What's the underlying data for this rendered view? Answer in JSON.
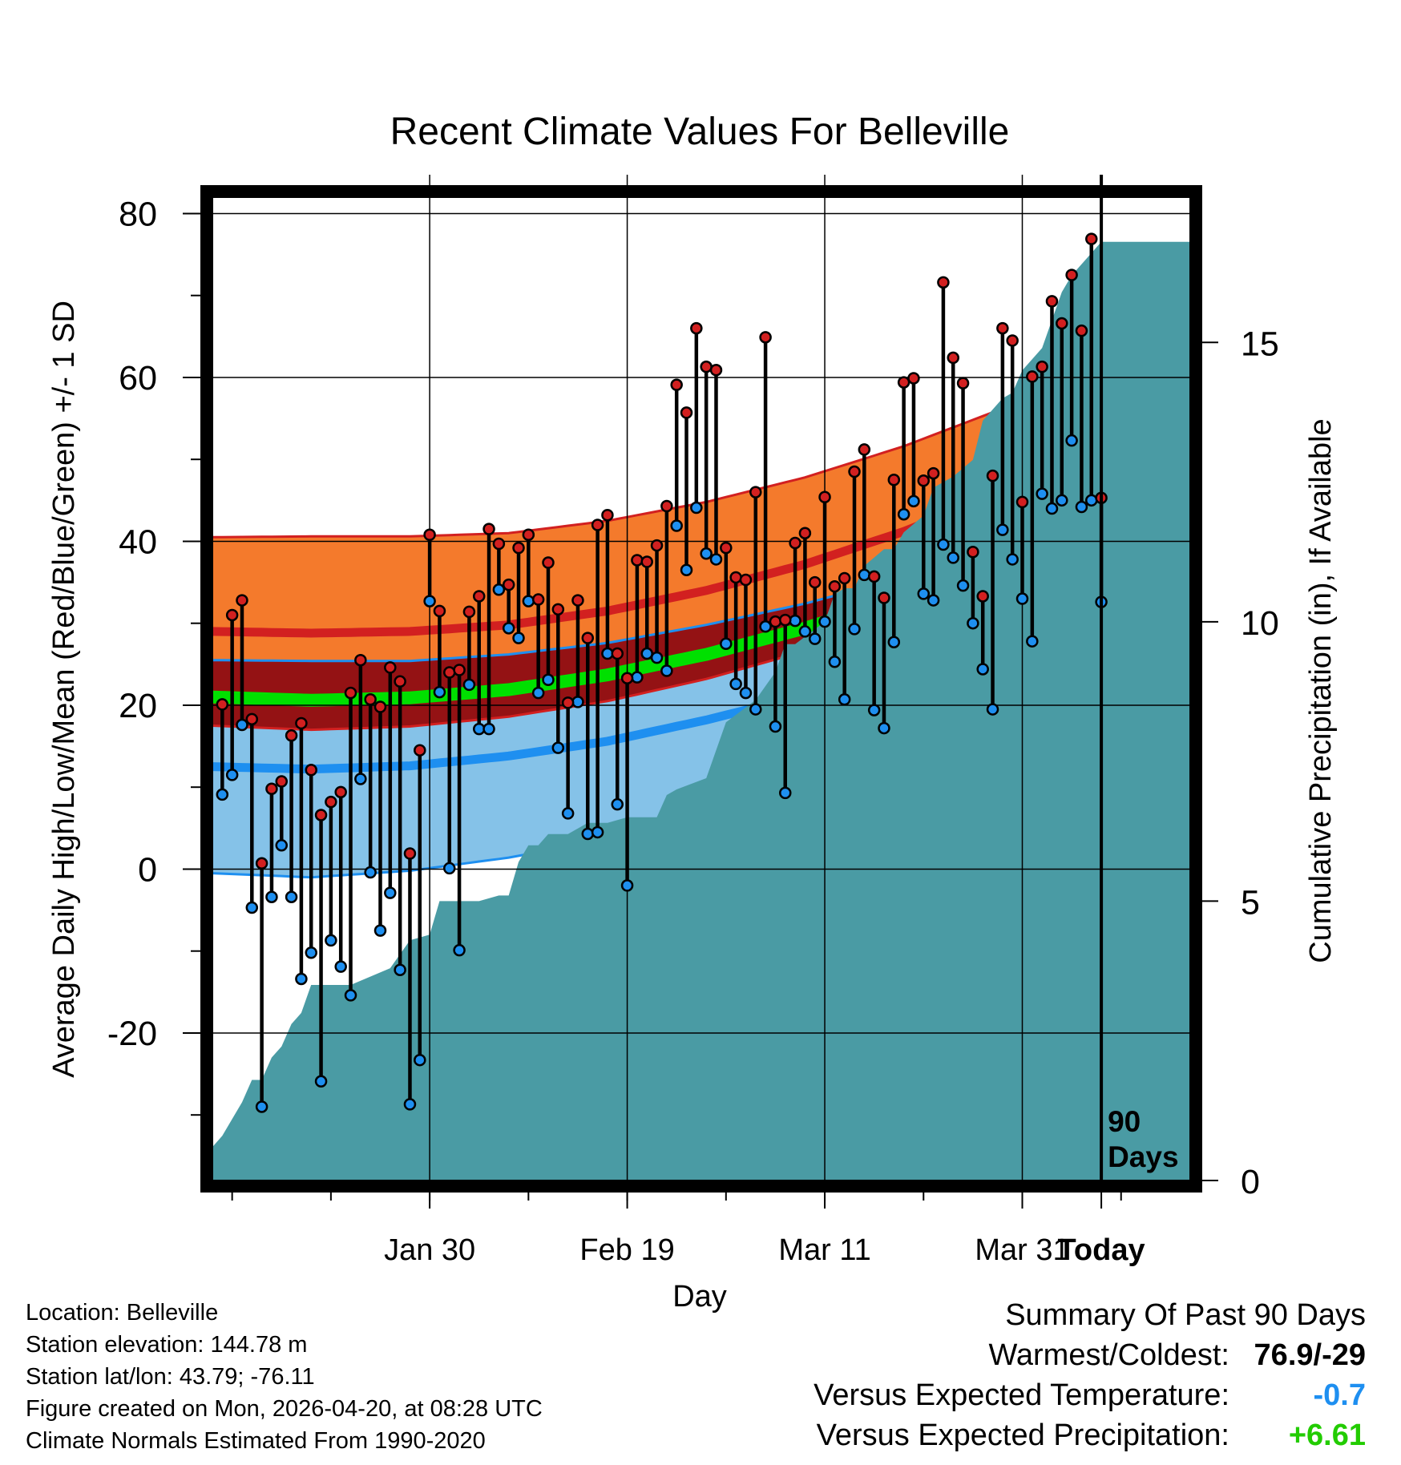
{
  "chart_data": {
    "type": "line",
    "title": "Recent Climate Values For Belleville",
    "xlabel": "Day",
    "ylabel_left": "Average Daily High/Low/Mean (Red/Blue/Green) +/- 1 SD",
    "ylabel_right": "Cumulative Precipitation (in), If Available",
    "x_range_days": [
      -90,
      9
    ],
    "y_left_range": [
      -38,
      82
    ],
    "y_right_range": [
      0,
      17.6
    ],
    "x_ticks": [
      {
        "day": -68,
        "label": "Jan 30"
      },
      {
        "day": -48,
        "label": "Feb 19"
      },
      {
        "day": -28,
        "label": "Mar 11"
      },
      {
        "day": -8,
        "label": "Mar 31"
      },
      {
        "day": 0,
        "label": "Today"
      }
    ],
    "y_left_ticks": [
      80,
      60,
      40,
      20,
      0,
      -20
    ],
    "y_right_ticks": [
      15,
      10,
      5,
      0
    ],
    "today_marker_label": "90\nDays",
    "normals": {
      "day": [
        -90,
        -80,
        -70,
        -60,
        -50,
        -40,
        -30,
        -20,
        -10,
        0,
        9
      ],
      "high_mean": [
        29.0,
        28.8,
        29.0,
        29.8,
        31.5,
        34.0,
        37.2,
        41.2,
        46.0,
        53.0,
        60.0
      ],
      "high_sd": [
        11.5,
        11.8,
        11.6,
        11.2,
        11.0,
        10.8,
        10.6,
        10.4,
        10.2,
        10.0,
        9.8
      ],
      "low_mean": [
        12.5,
        12.2,
        12.6,
        13.8,
        15.6,
        18.2,
        21.2,
        25.0,
        29.5,
        35.5,
        40.5
      ],
      "low_sd": [
        13.0,
        13.2,
        12.8,
        12.4,
        12.0,
        11.6,
        11.2,
        10.6,
        9.8,
        8.5,
        7.5
      ],
      "mean": [
        21.0,
        20.6,
        20.9,
        21.9,
        23.7,
        26.2,
        29.4,
        33.2,
        37.8,
        44.3,
        50.3
      ],
      "mean_band_color": "#00e000",
      "high_band_color": "#f47a2c",
      "high_line_color": "#d22020",
      "low_band_color": "#85c2e8",
      "low_line_color": "#1e8ff0",
      "overlap_color": "#941214"
    },
    "series": [
      {
        "name": "Daily High",
        "color": "#d22020",
        "values": [
          20.1,
          31.0,
          32.8,
          18.3,
          0.7,
          9.8,
          10.7,
          16.3,
          17.8,
          12.1,
          6.6,
          8.2,
          9.4,
          21.5,
          25.5,
          20.7,
          19.8,
          24.6,
          22.9,
          1.9,
          14.5,
          40.8,
          31.5,
          24.0,
          24.3,
          31.4,
          33.3,
          41.5,
          39.7,
          34.7,
          39.2,
          40.8,
          32.9,
          37.4,
          31.7,
          20.3,
          32.8,
          28.2,
          42.0,
          43.2,
          26.3,
          23.3,
          37.7,
          37.5,
          39.5,
          44.3,
          59.1,
          55.7,
          66.0,
          61.3,
          60.9,
          39.2,
          35.6,
          35.3,
          46.0,
          64.9,
          30.2,
          30.4,
          39.8,
          41.0,
          35.0,
          45.4,
          34.5,
          35.5,
          48.5,
          51.2,
          35.7,
          33.1,
          47.5,
          59.4,
          59.9,
          47.4,
          48.3,
          71.6,
          62.4,
          59.3,
          38.7,
          33.3,
          48.0,
          66.0,
          64.5,
          44.8,
          60.1,
          61.3,
          69.3,
          66.6,
          72.5,
          65.7,
          76.9,
          45.3
        ]
      },
      {
        "name": "Daily Low",
        "color": "#1e8ff0",
        "values": [
          9.1,
          11.5,
          17.6,
          -4.7,
          -29.0,
          -3.4,
          2.9,
          -3.4,
          -13.4,
          -10.2,
          -25.9,
          -8.7,
          -11.9,
          -15.4,
          11.0,
          -0.4,
          -7.5,
          -2.9,
          -12.3,
          -28.7,
          -23.3,
          32.7,
          21.6,
          0.1,
          -9.9,
          22.5,
          17.1,
          17.1,
          34.1,
          29.4,
          28.2,
          32.7,
          21.5,
          23.1,
          14.8,
          6.8,
          20.4,
          4.3,
          4.5,
          26.3,
          7.9,
          -2.0,
          23.4,
          26.3,
          25.8,
          24.2,
          41.9,
          36.5,
          44.1,
          38.5,
          37.8,
          27.5,
          22.6,
          21.5,
          19.5,
          29.6,
          17.4,
          9.3,
          30.3,
          29.0,
          28.1,
          30.2,
          25.3,
          20.7,
          29.3,
          35.9,
          19.4,
          17.2,
          27.7,
          43.3,
          44.9,
          33.6,
          32.8,
          39.6,
          38.0,
          34.6,
          30.0,
          24.4,
          19.5,
          41.4,
          37.8,
          33.0,
          27.8,
          45.8,
          44.0,
          45.0,
          52.3,
          44.2,
          45.0,
          32.6
        ]
      }
    ],
    "precipitation": {
      "days": [
        -90,
        -89,
        -87,
        -86,
        -85,
        -84,
        -83,
        -82,
        -81,
        -80,
        -78,
        -76,
        -72,
        -70,
        -68,
        -67,
        -63,
        -61,
        -60,
        -59,
        -58,
        -57,
        -56,
        -54,
        -52,
        -50,
        -48,
        -47,
        -45,
        -44,
        -43,
        -40,
        -38,
        -35,
        -33,
        -32,
        -31,
        -28,
        -27,
        -26,
        -25,
        -24,
        -22,
        -21,
        -20,
        -18,
        -17,
        -15,
        -13,
        -12,
        -10,
        -9,
        -8,
        -6,
        -5,
        -4,
        -3,
        -1,
        0,
        1,
        9
      ],
      "values": [
        0.6,
        0.8,
        1.4,
        1.8,
        1.8,
        2.2,
        2.4,
        2.8,
        3.0,
        3.5,
        3.5,
        3.5,
        3.8,
        4.3,
        4.4,
        5.0,
        5.0,
        5.1,
        5.1,
        5.7,
        6.0,
        6.0,
        6.2,
        6.2,
        6.4,
        6.4,
        6.5,
        6.5,
        6.5,
        6.9,
        7.0,
        7.2,
        8.2,
        8.6,
        9.1,
        9.6,
        9.6,
        10.0,
        10.5,
        10.6,
        10.6,
        11.0,
        11.3,
        11.3,
        11.6,
        11.9,
        12.4,
        12.6,
        12.9,
        13.6,
        14.0,
        14.1,
        14.5,
        14.9,
        15.4,
        15.9,
        16.2,
        16.6,
        16.8,
        16.8,
        16.8
      ],
      "fill_color": "#4a9ba4"
    }
  },
  "info": {
    "location": "Location: Belleville",
    "elevation": "Station elevation: 144.78 m",
    "latlon": "Station lat/lon: 43.79; -76.11",
    "created": "Figure created on Mon, 2026-04-20, at 08:28 UTC",
    "normals": "Climate Normals Estimated From 1990-2020"
  },
  "summary": {
    "heading": "Summary Of Past 90 Days",
    "warm_cold_label": "Warmest/Coldest:",
    "warm_cold_value": "76.9/-29",
    "temp_label": "Versus Expected Temperature:",
    "temp_value": "-0.7",
    "temp_color": "#1e8ff0",
    "precip_label": "Versus Expected Precipitation:",
    "precip_value": "+6.61",
    "precip_color": "#22cc00"
  }
}
